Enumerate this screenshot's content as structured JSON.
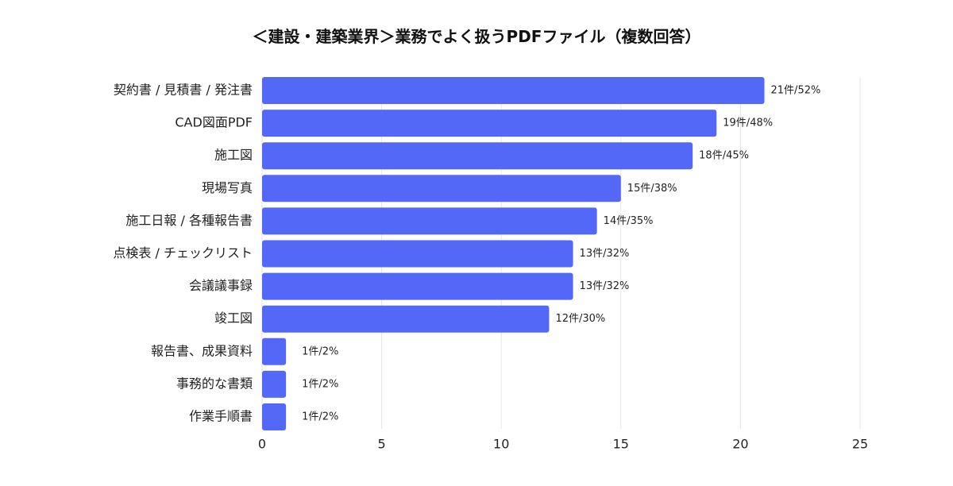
{
  "chart_data": {
    "type": "bar",
    "orientation": "horizontal",
    "title": "＜建設・建築業界＞業務でよく扱うPDFファイル（複数回答）",
    "categories": [
      "契約書 / 見積書 / 発注書",
      "CAD図面PDF",
      "施工図",
      "現場写真",
      "施工日報 / 各種報告書",
      "点検表 / チェックリスト",
      "会議議事録",
      "竣工図",
      "報告書、成果資料",
      "事務的な書類",
      "作業手順書"
    ],
    "values": [
      21,
      19,
      18,
      15,
      14,
      13,
      13,
      12,
      1,
      1,
      1
    ],
    "value_labels": [
      "21件/52%",
      "19件/48%",
      "18件/45%",
      "15件/38%",
      "14件/35%",
      "13件/32%",
      "13件/32%",
      "12件/30%",
      "1件/2%",
      "1件/2%",
      "1件/2%"
    ],
    "x_ticks": [
      "0",
      "5",
      "10",
      "15",
      "20",
      "25"
    ],
    "xlim": [
      0,
      25
    ],
    "grid": true,
    "bar_color": "#5468f7"
  }
}
